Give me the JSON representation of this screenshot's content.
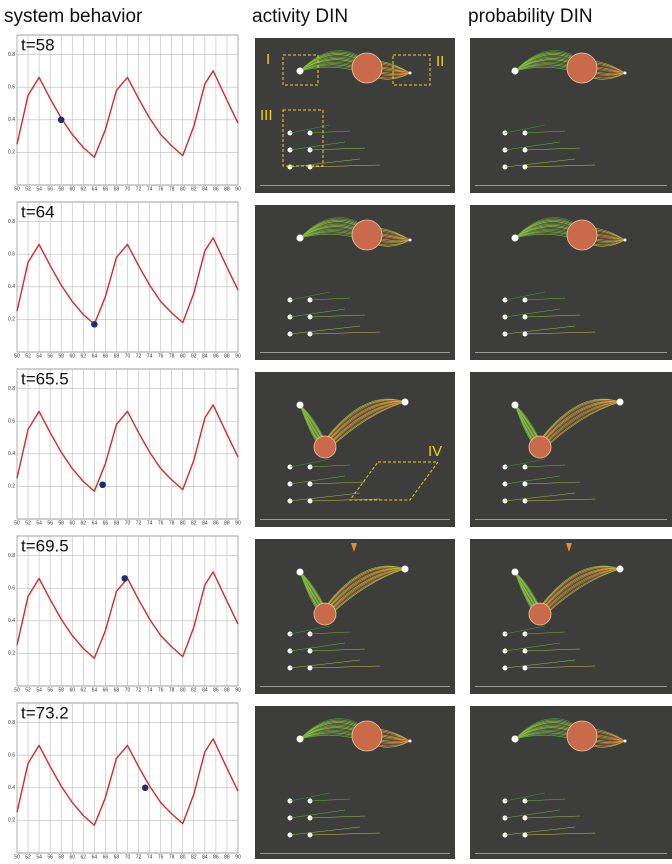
{
  "headings": [
    "system behavior",
    "activity DIN",
    "probability DIN"
  ],
  "annotations": [
    "I",
    "II",
    "III",
    "IV"
  ],
  "chart_data": [
    {
      "type": "line",
      "title": "t=58",
      "x": [
        50,
        52,
        54,
        56,
        58,
        60,
        62,
        64,
        66,
        68,
        70,
        72,
        74,
        76,
        78,
        80,
        82,
        84,
        85.5,
        88,
        90
      ],
      "series": [
        {
          "color": "#d42a2a",
          "values": [
            0.25,
            0.55,
            0.66,
            0.53,
            0.41,
            0.31,
            0.23,
            0.17,
            0.34,
            0.58,
            0.66,
            0.53,
            0.41,
            0.31,
            0.24,
            0.18,
            0.36,
            0.62,
            0.7,
            0.52,
            0.38
          ]
        }
      ],
      "marker": {
        "x": 58,
        "y": 0.4,
        "color": "#1f2f6e"
      },
      "xlim": [
        50,
        90
      ],
      "ylim": [
        0,
        0.92
      ],
      "xticks": [
        50,
        52,
        54,
        56,
        58,
        60,
        62,
        64,
        66,
        68,
        70,
        72,
        74,
        76,
        78,
        80,
        82,
        84,
        86,
        88,
        90
      ],
      "yticks": [
        0.2,
        0.4,
        0.6,
        0.8
      ],
      "grid": true
    },
    {
      "type": "line",
      "title": "t=64",
      "x": [
        50,
        52,
        54,
        56,
        58,
        60,
        62,
        64,
        66,
        68,
        70,
        72,
        74,
        76,
        78,
        80,
        82,
        84,
        85.5,
        88,
        90
      ],
      "series": [
        {
          "color": "#d42a2a",
          "values": [
            0.25,
            0.55,
            0.66,
            0.53,
            0.41,
            0.31,
            0.23,
            0.17,
            0.34,
            0.58,
            0.66,
            0.53,
            0.41,
            0.31,
            0.24,
            0.18,
            0.36,
            0.62,
            0.7,
            0.52,
            0.38
          ]
        }
      ],
      "marker": {
        "x": 64,
        "y": 0.17,
        "color": "#1f2f6e"
      },
      "xlim": [
        50,
        90
      ],
      "ylim": [
        0,
        0.92
      ],
      "xticks": [
        50,
        52,
        54,
        56,
        58,
        60,
        62,
        64,
        66,
        68,
        70,
        72,
        74,
        76,
        78,
        80,
        82,
        84,
        86,
        88,
        90
      ],
      "yticks": [
        0.2,
        0.4,
        0.6,
        0.8
      ],
      "grid": true
    },
    {
      "type": "line",
      "title": "t=65.5",
      "x": [
        50,
        52,
        54,
        56,
        58,
        60,
        62,
        64,
        66,
        68,
        70,
        72,
        74,
        76,
        78,
        80,
        82,
        84,
        85.5,
        88,
        90
      ],
      "series": [
        {
          "color": "#d42a2a",
          "values": [
            0.25,
            0.55,
            0.66,
            0.53,
            0.41,
            0.31,
            0.23,
            0.17,
            0.34,
            0.58,
            0.66,
            0.53,
            0.41,
            0.31,
            0.24,
            0.18,
            0.36,
            0.62,
            0.7,
            0.52,
            0.38
          ]
        }
      ],
      "marker": {
        "x": 65.5,
        "y": 0.21,
        "color": "#1f2f6e"
      },
      "xlim": [
        50,
        90
      ],
      "ylim": [
        0,
        0.92
      ],
      "xticks": [
        50,
        52,
        54,
        56,
        58,
        60,
        62,
        64,
        66,
        68,
        70,
        72,
        74,
        76,
        78,
        80,
        82,
        84,
        86,
        88,
        90
      ],
      "yticks": [
        0.2,
        0.4,
        0.6,
        0.8
      ],
      "grid": true
    },
    {
      "type": "line",
      "title": "t=69.5",
      "x": [
        50,
        52,
        54,
        56,
        58,
        60,
        62,
        64,
        66,
        68,
        70,
        72,
        74,
        76,
        78,
        80,
        82,
        84,
        85.5,
        88,
        90
      ],
      "series": [
        {
          "color": "#d42a2a",
          "values": [
            0.25,
            0.55,
            0.66,
            0.53,
            0.41,
            0.31,
            0.23,
            0.17,
            0.34,
            0.58,
            0.66,
            0.53,
            0.41,
            0.31,
            0.24,
            0.18,
            0.36,
            0.62,
            0.7,
            0.52,
            0.38
          ]
        }
      ],
      "marker": {
        "x": 69.5,
        "y": 0.66,
        "color": "#1f2f6e"
      },
      "xlim": [
        50,
        90
      ],
      "ylim": [
        0,
        0.92
      ],
      "xticks": [
        50,
        52,
        54,
        56,
        58,
        60,
        62,
        64,
        66,
        68,
        70,
        72,
        74,
        76,
        78,
        80,
        82,
        84,
        86,
        88,
        90
      ],
      "yticks": [
        0.2,
        0.4,
        0.6,
        0.8
      ],
      "grid": true
    },
    {
      "type": "line",
      "title": "t=73.2",
      "x": [
        50,
        52,
        54,
        56,
        58,
        60,
        62,
        64,
        66,
        68,
        70,
        72,
        74,
        76,
        78,
        80,
        82,
        84,
        85.5,
        88,
        90
      ],
      "series": [
        {
          "color": "#d42a2a",
          "values": [
            0.25,
            0.55,
            0.66,
            0.53,
            0.41,
            0.31,
            0.23,
            0.17,
            0.34,
            0.58,
            0.66,
            0.53,
            0.41,
            0.31,
            0.24,
            0.18,
            0.36,
            0.62,
            0.7,
            0.52,
            0.38
          ]
        }
      ],
      "marker": {
        "x": 73.2,
        "y": 0.4,
        "color": "#1f2f6e"
      },
      "xlim": [
        50,
        90
      ],
      "ylim": [
        0,
        0.92
      ],
      "xticks": [
        50,
        52,
        54,
        56,
        58,
        60,
        62,
        64,
        66,
        68,
        70,
        72,
        74,
        76,
        78,
        80,
        82,
        84,
        86,
        88,
        90
      ],
      "yticks": [
        0.2,
        0.4,
        0.6,
        0.8
      ],
      "grid": true
    }
  ]
}
